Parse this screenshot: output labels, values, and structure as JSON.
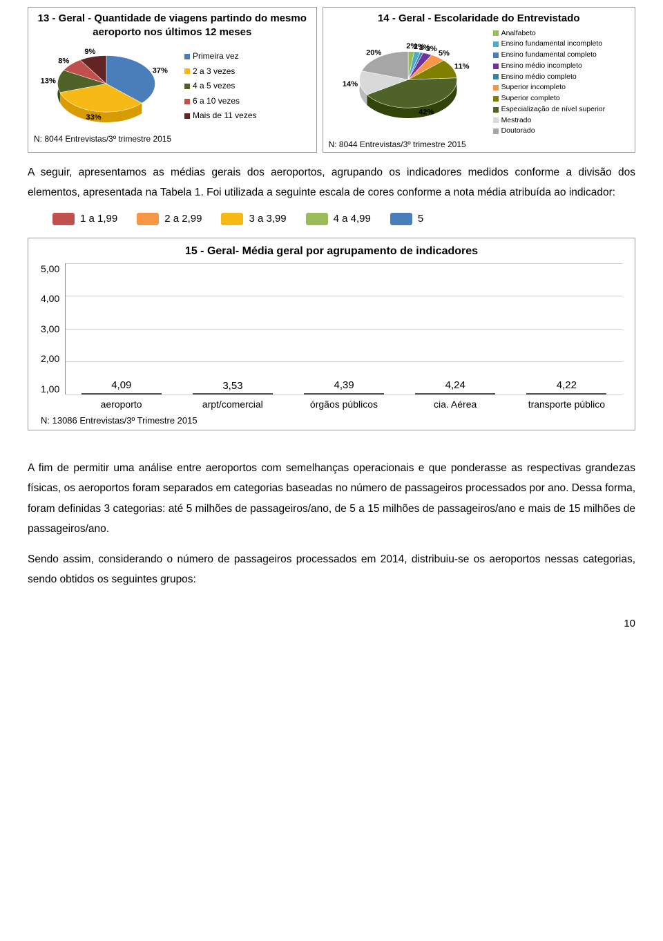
{
  "colors": {
    "blue": "#4a7ebb",
    "red": "#c0504d",
    "yellow": "#f6b915",
    "darkgreen": "#4f6228",
    "green": "#9bbb59",
    "teal": "#31859c",
    "orange": "#f79646",
    "purple": "#7030a0",
    "grey": "#a6a6a6",
    "lightblue": "#4bacc6",
    "olive": "#808000",
    "darkred": "#632523"
  },
  "chart13": {
    "type": "pie",
    "title": "13 - Geral - Quantidade de viagens partindo do mesmo aeroporto nos últimos 12 meses",
    "slices": [
      {
        "label": "Primeira vez",
        "pct": 37,
        "color": "#4a7ebb"
      },
      {
        "label": "2 a 3 vezes",
        "pct": 33,
        "color": "#f6b915"
      },
      {
        "label": "4 a 5 vezes",
        "pct": 13,
        "color": "#4f6228"
      },
      {
        "label": "6 a 10 vezes",
        "pct": 8,
        "color": "#c0504d"
      },
      {
        "label": "Mais de 11 vezes",
        "pct": 9,
        "color": "#632523"
      }
    ],
    "note": "N: 8044 Entrevistas/3º trimestre 2015"
  },
  "chart14": {
    "type": "pie",
    "title": "14 - Geral - Escolaridade do Entrevistado",
    "slices": [
      {
        "label": "Analfabeto",
        "pct": 2,
        "color": "#9bbb59"
      },
      {
        "label": "Ensino fundamental incompleto",
        "pct": 2,
        "color": "#4bacc6"
      },
      {
        "label": "Ensino fundamental completo",
        "pct": 1,
        "color": "#4a7ebb"
      },
      {
        "label": "Ensino médio incompleto",
        "pct": 3,
        "color": "#7030a0"
      },
      {
        "label": "Ensino médio completo",
        "pct": 0,
        "color": "#31859c"
      },
      {
        "label": "Superior incompleto",
        "pct": 5,
        "color": "#f79646"
      },
      {
        "label": "Superior completo",
        "pct": 11,
        "color": "#808000"
      },
      {
        "label": "Especialização de nível superior",
        "pct": 42,
        "color": "#4f6228"
      },
      {
        "label": "Mestrado",
        "pct": 14,
        "color": "#d9d9d9"
      },
      {
        "label": "Doutorado",
        "pct": 20,
        "color": "#a6a6a6"
      }
    ],
    "label_positions": [
      "2%",
      "2%",
      "1%",
      "3%",
      "0%",
      "5%",
      "11%",
      "42%",
      "14%",
      "20%"
    ],
    "note": "N: 8044 Entrevistas/3º trimestre 2015"
  },
  "para1": "A seguir, apresentamos as médias gerais dos aeroportos, agrupando os indicadores medidos conforme a divisão dos elementos, apresentada na Tabela 1. Foi utilizada a seguinte escala de cores conforme a nota média atribuída ao indicador:",
  "scale": [
    {
      "label": "1 a 1,99",
      "color": "#c0504d"
    },
    {
      "label": "2 a 2,99",
      "color": "#f79646"
    },
    {
      "label": "3 a 3,99",
      "color": "#f6b915"
    },
    {
      "label": "4 a 4,99",
      "color": "#9bbb59"
    },
    {
      "label": "5",
      "color": "#4a7ebb"
    }
  ],
  "chart15": {
    "type": "bar",
    "title": "15 - Geral- Média geral por agrupamento de indicadores",
    "ylim": [
      1.0,
      5.0
    ],
    "yticks": [
      "5,00",
      "4,00",
      "3,00",
      "2,00",
      "1,00"
    ],
    "bars": [
      {
        "category": "aeroporto",
        "value": 4.09,
        "label": "4,09",
        "color": "#9bbb59"
      },
      {
        "category": "arpt/comercial",
        "value": 3.53,
        "label": "3,53",
        "color": "#f6b915"
      },
      {
        "category": "órgãos públicos",
        "value": 4.39,
        "label": "4,39",
        "color": "#9bbb59"
      },
      {
        "category": "cia. Aérea",
        "value": 4.24,
        "label": "4,24",
        "color": "#9bbb59"
      },
      {
        "category": "transporte público",
        "value": 4.22,
        "label": "4,22",
        "color": "#9bbb59"
      }
    ],
    "note": "N: 13086 Entrevistas/3º Trimestre 2015"
  },
  "para2": "A fim de permitir uma análise entre aeroportos com semelhanças operacionais e que ponderasse as respectivas grandezas físicas, os aeroportos foram separados em categorias baseadas no número de passageiros processados por ano. Dessa forma, foram definidas 3 categorias: até 5 milhões de passageiros/ano, de 5 a 15 milhões de passageiros/ano e mais de 15 milhões de passageiros/ano.",
  "para3": "Sendo assim, considerando o número de passageiros processados em 2014, distribuiu-se os aeroportos nessas categorias, sendo obtidos os seguintes grupos:",
  "pagenum": "10"
}
